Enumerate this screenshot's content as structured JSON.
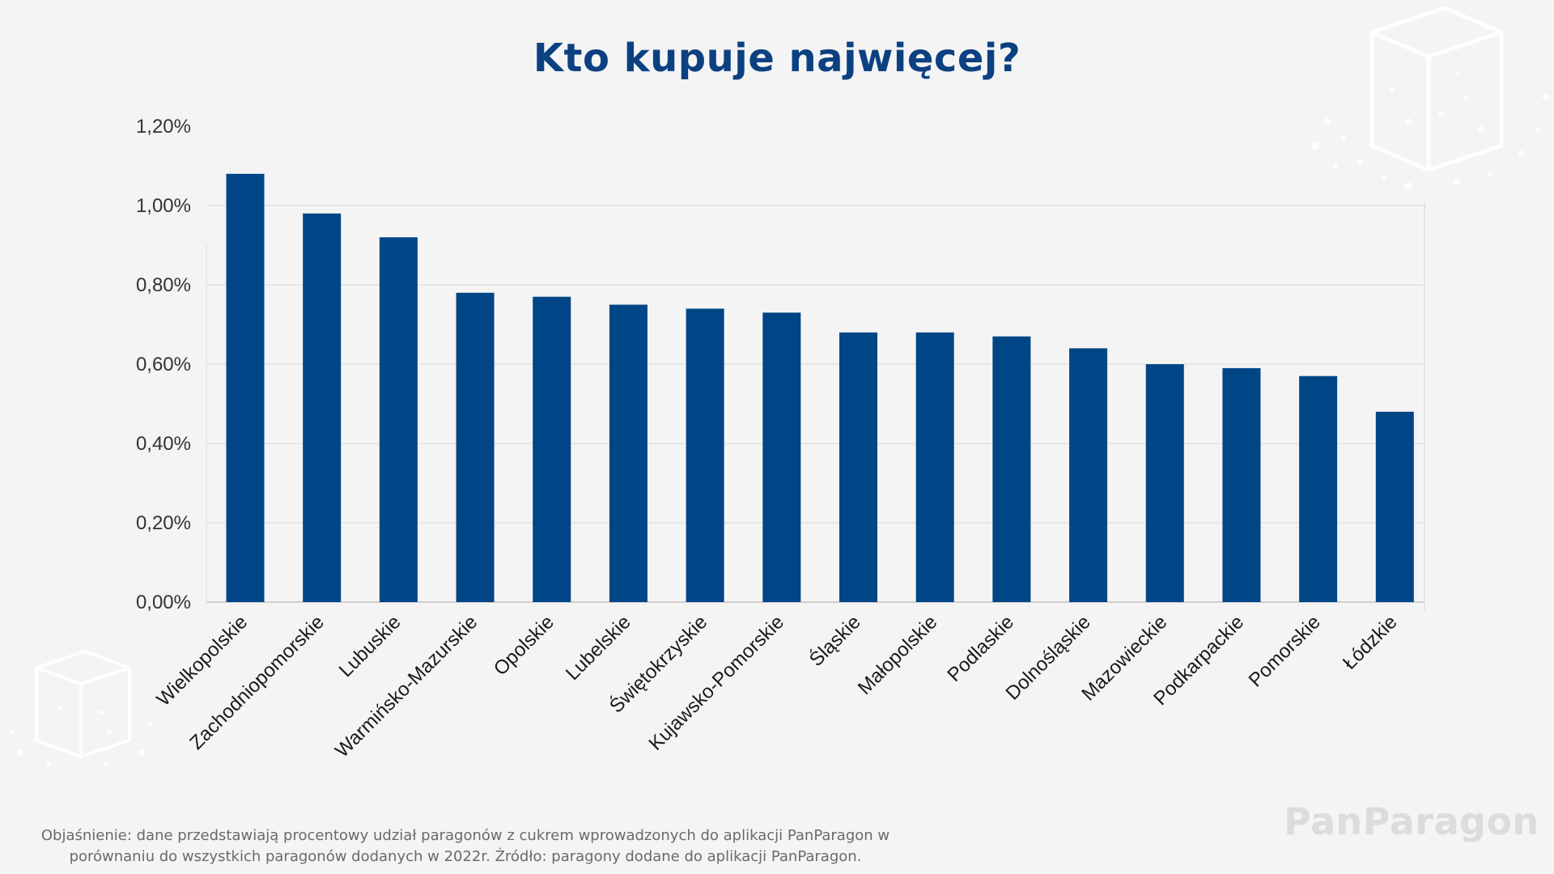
{
  "title": "Kto kupuje najwięcej?",
  "footnote": {
    "line1": "Objaśnienie: dane przedstawiają procentowy udział paragonów z cukrem  wprowadzonych do aplikacji PanParagon  w",
    "line2": "porównaniu do wszystkich paragonów dodanych w 2022r. Źródło: paragony dodane do aplikacji PanParagon."
  },
  "brand": "PanParagon",
  "colors": {
    "bar": "#004586",
    "title": "#0c4181",
    "background": "#f4f4f4"
  },
  "icons": [
    "sugar-cube-icon"
  ],
  "chart_data": {
    "type": "bar",
    "title": "Kto kupuje najwięcej?",
    "categories": [
      "Wielkopolskie",
      "Zachodniopomorskie",
      "Lubuskie",
      "Warmińsko-Mazurskie",
      "Opolskie",
      "Lubelskie",
      "Świętokrzyskie",
      "Kujawsko-Pomorskie",
      "Śląskie",
      "Małopolskie",
      "Podlaskie",
      "Dolnośląskie",
      "Mazowieckie",
      "Podkarpackie",
      "Pomorskie",
      "Łódzkie"
    ],
    "values": [
      1.08,
      0.98,
      0.92,
      0.78,
      0.77,
      0.75,
      0.74,
      0.73,
      0.68,
      0.68,
      0.67,
      0.64,
      0.6,
      0.59,
      0.57,
      0.48
    ],
    "unit": "%",
    "ylim": [
      0,
      1.2
    ],
    "yticks": [
      "0,00%",
      "0,20%",
      "0,40%",
      "0,60%",
      "0,80%",
      "1,00%",
      "1,20%"
    ],
    "xlabel": "",
    "ylabel": "",
    "grid": true,
    "legend": "none"
  }
}
